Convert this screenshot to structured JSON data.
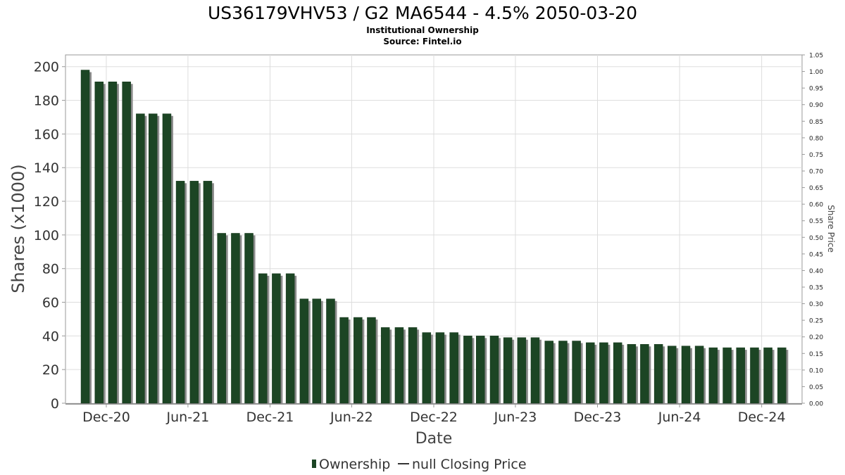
{
  "header": {
    "title": "US36179VHV53 / G2 MA6544 - 4.5% 2050-03-20",
    "subtitle": "Institutional Ownership",
    "source": "Source: Fintel.io"
  },
  "legend": {
    "ownership": "Ownership",
    "price": "null Closing Price"
  },
  "colors": {
    "bar": "#1c4524",
    "bar_shadow": "#8c8c8c",
    "grid": "#dddddd",
    "axis": "#999999"
  },
  "chart_data": {
    "type": "bar",
    "title": "US36179VHV53 / G2 MA6544 - 4.5% 2050-03-20",
    "subtitle": "Institutional Ownership",
    "xlabel": "Date",
    "ylabel": "Shares (x1000)",
    "y2label": "Share Price",
    "ylim": [
      0,
      207
    ],
    "y2lim": [
      0,
      1.05
    ],
    "yticks": [
      0,
      20,
      40,
      60,
      80,
      100,
      120,
      140,
      160,
      180,
      200
    ],
    "y2ticks": [
      "0.00",
      "0.05",
      "0.10",
      "0.15",
      "0.20",
      "0.25",
      "0.30",
      "0.35",
      "0.40",
      "0.45",
      "0.50",
      "0.55",
      "0.60",
      "0.65",
      "0.70",
      "0.75",
      "0.80",
      "0.85",
      "0.90",
      "0.95",
      "1.00",
      "1.05"
    ],
    "xlim": [
      "2020-09-01",
      "2025-03-01"
    ],
    "xticks": [
      {
        "label": "Dec-20",
        "date": "2020-12-01"
      },
      {
        "label": "Jun-21",
        "date": "2021-06-01"
      },
      {
        "label": "Dec-21",
        "date": "2021-12-01"
      },
      {
        "label": "Jun-22",
        "date": "2022-06-01"
      },
      {
        "label": "Dec-22",
        "date": "2022-12-01"
      },
      {
        "label": "Jun-23",
        "date": "2023-06-01"
      },
      {
        "label": "Dec-23",
        "date": "2023-12-01"
      },
      {
        "label": "Jun-24",
        "date": "2024-06-01"
      },
      {
        "label": "Dec-24",
        "date": "2024-12-01"
      }
    ],
    "grid": true,
    "legend_position": "bottom",
    "series": [
      {
        "name": "Ownership",
        "x": [
          "2020-10-15",
          "2020-11-15",
          "2020-12-15",
          "2021-01-15",
          "2021-02-15",
          "2021-03-15",
          "2021-04-15",
          "2021-05-15",
          "2021-06-15",
          "2021-07-15",
          "2021-08-15",
          "2021-09-15",
          "2021-10-15",
          "2021-11-15",
          "2021-12-15",
          "2022-01-15",
          "2022-02-15",
          "2022-03-15",
          "2022-04-15",
          "2022-05-15",
          "2022-06-15",
          "2022-07-15",
          "2022-08-15",
          "2022-09-15",
          "2022-10-15",
          "2022-11-15",
          "2022-12-15",
          "2023-01-15",
          "2023-02-15",
          "2023-03-15",
          "2023-04-15",
          "2023-05-15",
          "2023-06-15",
          "2023-07-15",
          "2023-08-15",
          "2023-09-15",
          "2023-10-15",
          "2023-11-15",
          "2023-12-15",
          "2024-01-15",
          "2024-02-15",
          "2024-03-15",
          "2024-04-15",
          "2024-05-15",
          "2024-06-15",
          "2024-07-15",
          "2024-08-15",
          "2024-09-15",
          "2024-10-15",
          "2024-11-15",
          "2024-12-15",
          "2025-01-15"
        ],
        "values": [
          198,
          191,
          191,
          191,
          172,
          172,
          172,
          132,
          132,
          132,
          101,
          101,
          101,
          77,
          77,
          77,
          62,
          62,
          62,
          51,
          51,
          51,
          45,
          45,
          45,
          42,
          42,
          42,
          40,
          40,
          40,
          39,
          39,
          39,
          37,
          37,
          37,
          36,
          36,
          36,
          35,
          35,
          35,
          34,
          34,
          34,
          33,
          33,
          33,
          33,
          33,
          33
        ]
      }
    ]
  }
}
